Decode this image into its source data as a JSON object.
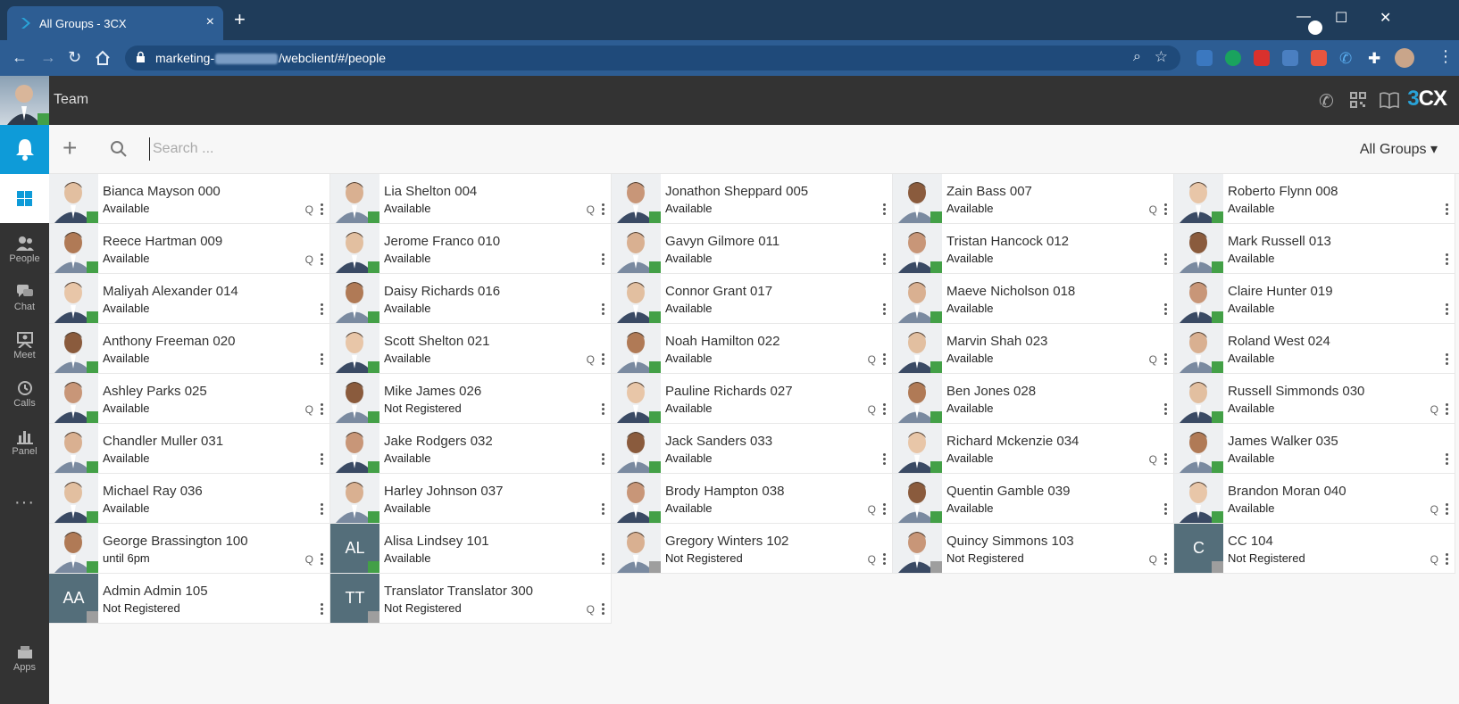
{
  "browser": {
    "tab_title": "All Groups - 3CX",
    "tab_close": "×",
    "new_tab": "+",
    "url_prefix": "marketing-",
    "url_suffix": "/webclient/#/people",
    "controls": [
      "—",
      "☐",
      "✕"
    ]
  },
  "header": {
    "title": "Team",
    "brand_number": "3",
    "brand_text": "CX"
  },
  "rail": {
    "items": [
      {
        "label": "People",
        "icon": "people-icon"
      },
      {
        "label": "Chat",
        "icon": "chat-icon"
      },
      {
        "label": "Meet",
        "icon": "meet-icon"
      },
      {
        "label": "Calls",
        "icon": "calls-icon"
      },
      {
        "label": "Panel",
        "icon": "panel-icon"
      }
    ],
    "more": "···",
    "apps_label": "Apps"
  },
  "search": {
    "placeholder": "Search ...",
    "add_label": "+",
    "group_select": "All Groups ▾"
  },
  "colors": {
    "accent": "#0e9bd8",
    "available": "#43a047",
    "offline": "#9e9e9e",
    "initials_bg": "#546e7a"
  },
  "contacts": [
    {
      "name": "Bianca Mayson 000",
      "status": "Available",
      "q": true,
      "online": true
    },
    {
      "name": "Lia Shelton 004",
      "status": "Available",
      "q": true,
      "online": true
    },
    {
      "name": "Jonathon Sheppard 005",
      "status": "Available",
      "q": false,
      "online": true
    },
    {
      "name": "Zain Bass 007",
      "status": "Available",
      "q": true,
      "online": true
    },
    {
      "name": "Roberto Flynn 008",
      "status": "Available",
      "q": false,
      "online": true
    },
    {
      "name": "Reece Hartman 009",
      "status": "Available",
      "q": true,
      "online": true
    },
    {
      "name": "Jerome Franco 010",
      "status": "Available",
      "q": false,
      "online": true
    },
    {
      "name": "Gavyn Gilmore 011",
      "status": "Available",
      "q": false,
      "online": true
    },
    {
      "name": "Tristan Hancock 012",
      "status": "Available",
      "q": false,
      "online": true
    },
    {
      "name": "Mark Russell 013",
      "status": "Available",
      "q": false,
      "online": true
    },
    {
      "name": "Maliyah Alexander 014",
      "status": "Available",
      "q": false,
      "online": true
    },
    {
      "name": "Daisy Richards 016",
      "status": "Available",
      "q": false,
      "online": true
    },
    {
      "name": "Connor Grant 017",
      "status": "Available",
      "q": false,
      "online": true
    },
    {
      "name": "Maeve Nicholson 018",
      "status": "Available",
      "q": false,
      "online": true
    },
    {
      "name": "Claire Hunter 019",
      "status": "Available",
      "q": false,
      "online": true
    },
    {
      "name": "Anthony Freeman 020",
      "status": "Available",
      "q": false,
      "online": true
    },
    {
      "name": "Scott Shelton 021",
      "status": "Available",
      "q": true,
      "online": true
    },
    {
      "name": "Noah Hamilton 022",
      "status": "Available",
      "q": true,
      "online": true
    },
    {
      "name": "Marvin Shah 023",
      "status": "Available",
      "q": true,
      "online": true
    },
    {
      "name": "Roland West 024",
      "status": "Available",
      "q": false,
      "online": true
    },
    {
      "name": "Ashley Parks 025",
      "status": "Available",
      "q": true,
      "online": true
    },
    {
      "name": "Mike James 026",
      "status": "Not Registered",
      "q": false,
      "online": true
    },
    {
      "name": "Pauline Richards 027",
      "status": "Available",
      "q": true,
      "online": true
    },
    {
      "name": "Ben Jones 028",
      "status": "Available",
      "q": false,
      "online": true
    },
    {
      "name": "Russell Simmonds 030",
      "status": "Available",
      "q": true,
      "online": true
    },
    {
      "name": "Chandler Muller 031",
      "status": "Available",
      "q": false,
      "online": true
    },
    {
      "name": "Jake Rodgers 032",
      "status": "Available",
      "q": false,
      "online": true
    },
    {
      "name": "Jack Sanders 033",
      "status": "Available",
      "q": false,
      "online": true
    },
    {
      "name": "Richard Mckenzie 034",
      "status": "Available",
      "q": true,
      "online": true
    },
    {
      "name": "James Walker 035",
      "status": "Available",
      "q": false,
      "online": true
    },
    {
      "name": "Michael Ray 036",
      "status": "Available",
      "q": false,
      "online": true
    },
    {
      "name": "Harley Johnson 037",
      "status": "Available",
      "q": false,
      "online": true
    },
    {
      "name": "Brody Hampton 038",
      "status": "Available",
      "q": true,
      "online": true
    },
    {
      "name": "Quentin Gamble 039",
      "status": "Available",
      "q": false,
      "online": true
    },
    {
      "name": "Brandon Moran 040",
      "status": "Available",
      "q": true,
      "online": true
    },
    {
      "name": "George Brassington 100",
      "status": "until 6pm",
      "q": true,
      "online": true
    },
    {
      "name": "Alisa Lindsey 101",
      "status": "Available",
      "q": false,
      "online": true,
      "initials": "AL"
    },
    {
      "name": "Gregory Winters 102",
      "status": "Not Registered",
      "q": true,
      "online": false
    },
    {
      "name": "Quincy Simmons 103",
      "status": "Not Registered",
      "q": true,
      "online": false
    },
    {
      "name": "CC 104",
      "status": "Not Registered",
      "q": true,
      "online": false,
      "initials": "C"
    },
    {
      "name": "Admin Admin 105",
      "status": "Not Registered",
      "q": false,
      "online": false,
      "initials": "AA"
    },
    {
      "name": "Translator Translator 300",
      "status": "Not Registered",
      "q": true,
      "online": false,
      "initials": "TT"
    }
  ]
}
